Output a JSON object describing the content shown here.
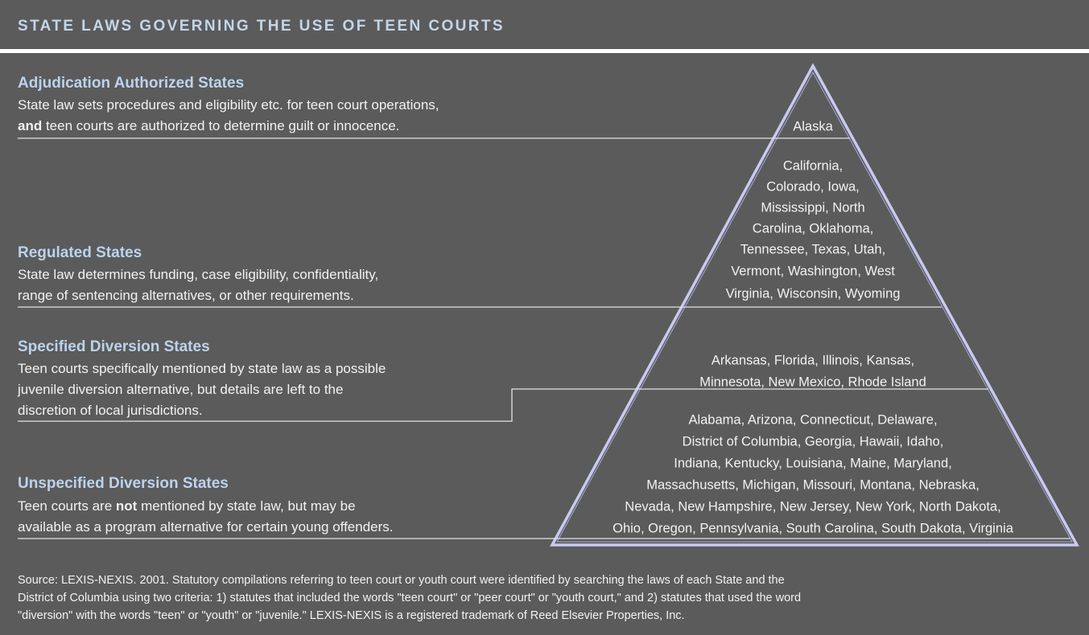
{
  "title": "STATE LAWS GOVERNING THE USE OF TEEN COURTS",
  "tiers": [
    {
      "heading": "Adjudication Authorized States",
      "description": [
        [
          {
            "text": "State law sets procedures and eligibility etc. for teen court operations,"
          }
        ],
        [
          {
            "text": "and",
            "bold": true
          },
          {
            "text": " teen courts are authorized to determine guilt or innocence."
          }
        ]
      ],
      "states": [
        "Alaska"
      ]
    },
    {
      "heading": "Regulated States",
      "description": [
        [
          {
            "text": "State law determines funding, case eligibility, confidentiality,"
          }
        ],
        [
          {
            "text": "range of sentencing alternatives, or other requirements."
          }
        ]
      ],
      "states": [
        "California,",
        "Colorado, Iowa,",
        "Mississippi, North",
        "Carolina, Oklahoma,",
        "Tennessee, Texas, Utah,",
        "Vermont, Washington, West",
        "Virginia, Wisconsin, Wyoming"
      ]
    },
    {
      "heading": "Specified Diversion States",
      "description": [
        [
          {
            "text": "Teen courts specifically mentioned by state law as a possible"
          }
        ],
        [
          {
            "text": "juvenile diversion alternative, but details are left to the"
          }
        ],
        [
          {
            "text": "discretion of local jurisdictions."
          }
        ]
      ],
      "states": [
        "Arkansas, Florida, Illinois, Kansas,",
        "Minnesota, New Mexico, Rhode Island"
      ]
    },
    {
      "heading": "Unspecified Diversion States",
      "description": [
        [
          {
            "text": "Teen courts are "
          },
          {
            "text": "not",
            "bold": true
          },
          {
            "text": " mentioned by state law, but may be"
          }
        ],
        [
          {
            "text": "available as a program alternative for certain young offenders."
          }
        ]
      ],
      "states": [
        "Alabama, Arizona, Connecticut, Delaware,",
        "District of Columbia, Georgia, Hawaii, Idaho,",
        "Indiana, Kentucky, Louisiana, Maine, Maryland,",
        "Massachusetts, Michigan, Missouri, Montana, Nebraska,",
        "Nevada, New Hampshire, New Jersey, New York, North Dakota,",
        "Ohio, Oregon, Pennsylvania, South Carolina, South Dakota, Virginia"
      ]
    }
  ],
  "source": [
    "Source:  LEXIS-NEXIS. 2001.  Statutory compilations referring to teen court or youth court were identified by searching the laws of each State and the",
    "District of Columbia using two criteria: 1) statutes that included the words \"teen court\" or \"peer court\" or \"youth court,\" and 2) statutes that used the word",
    "\"diversion\" with the words \"teen\" or \"youth\" or \"juvenile.\"  LEXIS-NEXIS is a registered trademark of Reed Elsevier Properties, Inc."
  ]
}
